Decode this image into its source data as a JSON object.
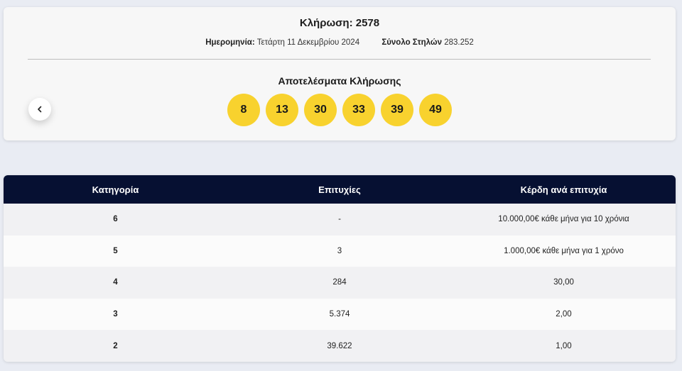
{
  "draw": {
    "title": "Κλήρωση: 2578",
    "date_label": "Ημερομηνία:",
    "date_value": "Τετάρτη 11 Δεκεμβρίου 2024",
    "columns_label": "Σύνολο Στηλών",
    "columns_value": "283.252",
    "results_title": "Αποτελέσματα Κλήρωσης",
    "numbers": [
      "8",
      "13",
      "30",
      "33",
      "39",
      "49"
    ],
    "ball_color": "#f8d22e",
    "prev_icon": "chevron-left-icon"
  },
  "table": {
    "headers": {
      "category": "Κατηγορία",
      "winners": "Επιτυχίες",
      "prize": "Κέρδη ανά επιτυχία"
    },
    "header_color": "#061032",
    "rows": [
      {
        "category": "6",
        "winners": "-",
        "prize": "10.000,00€ κάθε μήνα για 10 χρόνια"
      },
      {
        "category": "5",
        "winners": "3",
        "prize": "1.000,00€ κάθε μήνα για 1 χρόνο"
      },
      {
        "category": "4",
        "winners": "284",
        "prize": "30,00"
      },
      {
        "category": "3",
        "winners": "5.374",
        "prize": "2,00"
      },
      {
        "category": "2",
        "winners": "39.622",
        "prize": "1,00"
      }
    ]
  }
}
